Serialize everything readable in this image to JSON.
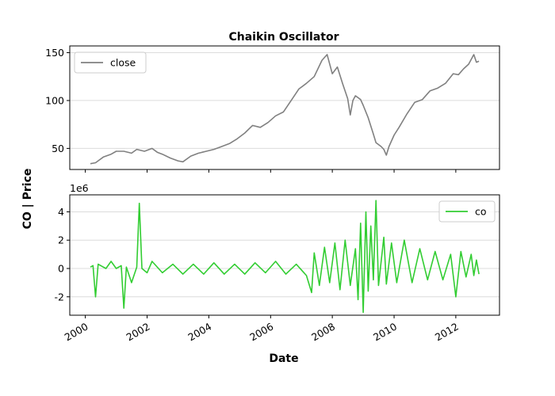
{
  "chart_data": [
    {
      "type": "line",
      "title": "Chaikin Oscillator",
      "legend": "top-left",
      "grid": "y",
      "ylim": [
        28,
        157
      ],
      "yticks": [
        50,
        100,
        150
      ],
      "series": [
        {
          "name": "close",
          "color": "#808080",
          "points": [
            [
              "2000-03-01",
              34
            ],
            [
              "2000-05-01",
              35
            ],
            [
              "2000-08-01",
              41
            ],
            [
              "2000-11-01",
              44
            ],
            [
              "2001-01-01",
              47
            ],
            [
              "2001-04-01",
              47
            ],
            [
              "2001-07-01",
              45
            ],
            [
              "2001-09-01",
              49
            ],
            [
              "2001-12-01",
              47
            ],
            [
              "2002-03-01",
              50
            ],
            [
              "2002-05-01",
              46
            ],
            [
              "2002-07-01",
              44
            ],
            [
              "2002-10-01",
              40
            ],
            [
              "2003-01-01",
              37
            ],
            [
              "2003-03-01",
              36
            ],
            [
              "2003-06-01",
              42
            ],
            [
              "2003-09-01",
              45
            ],
            [
              "2003-12-01",
              47
            ],
            [
              "2004-03-01",
              49
            ],
            [
              "2004-06-01",
              52
            ],
            [
              "2004-09-01",
              55
            ],
            [
              "2004-12-01",
              60
            ],
            [
              "2005-03-01",
              66
            ],
            [
              "2005-06-01",
              74
            ],
            [
              "2005-09-01",
              72
            ],
            [
              "2005-12-01",
              77
            ],
            [
              "2006-03-01",
              84
            ],
            [
              "2006-06-01",
              88
            ],
            [
              "2006-09-01",
              100
            ],
            [
              "2006-12-01",
              112
            ],
            [
              "2007-03-01",
              118
            ],
            [
              "2007-06-01",
              125
            ],
            [
              "2007-09-01",
              142
            ],
            [
              "2007-11-01",
              148
            ],
            [
              "2008-01-01",
              128
            ],
            [
              "2008-03-01",
              135
            ],
            [
              "2008-05-01",
              118
            ],
            [
              "2008-07-01",
              102
            ],
            [
              "2008-08-01",
              85
            ],
            [
              "2008-09-01",
              100
            ],
            [
              "2008-10-01",
              105
            ],
            [
              "2008-12-01",
              101
            ],
            [
              "2009-01-01",
              95
            ],
            [
              "2009-03-01",
              82
            ],
            [
              "2009-05-01",
              65
            ],
            [
              "2009-06-01",
              56
            ],
            [
              "2009-08-01",
              52
            ],
            [
              "2009-09-01",
              49
            ],
            [
              "2009-10-01",
              43
            ],
            [
              "2009-11-01",
              52
            ],
            [
              "2010-01-01",
              64
            ],
            [
              "2010-03-01",
              72
            ],
            [
              "2010-06-01",
              86
            ],
            [
              "2010-09-01",
              98
            ],
            [
              "2010-12-01",
              101
            ],
            [
              "2011-03-01",
              110
            ],
            [
              "2011-06-01",
              113
            ],
            [
              "2011-09-01",
              118
            ],
            [
              "2011-12-01",
              128
            ],
            [
              "2012-02-01",
              127
            ],
            [
              "2012-04-01",
              133
            ],
            [
              "2012-06-01",
              138
            ],
            [
              "2012-08-01",
              148
            ],
            [
              "2012-09-01",
              140
            ],
            [
              "2012-10-01",
              141
            ]
          ]
        }
      ]
    },
    {
      "type": "line",
      "y_scale_label": "1e6",
      "legend": "top-right",
      "grid": "y",
      "ylim": [
        -3.3,
        5.2
      ],
      "yticks": [
        -2,
        0,
        2,
        4
      ],
      "series": [
        {
          "name": "co",
          "color": "#32cd32",
          "points": [
            [
              "2000-03-01",
              0.1
            ],
            [
              "2000-04-01",
              0.2
            ],
            [
              "2000-05-01",
              -2.0
            ],
            [
              "2000-06-01",
              0.3
            ],
            [
              "2000-09-01",
              0.0
            ],
            [
              "2000-11-01",
              0.5
            ],
            [
              "2001-01-01",
              0.0
            ],
            [
              "2001-03-01",
              0.2
            ],
            [
              "2001-04-01",
              -2.8
            ],
            [
              "2001-05-01",
              0.1
            ],
            [
              "2001-07-01",
              -1.0
            ],
            [
              "2001-09-01",
              0.1
            ],
            [
              "2001-10-01",
              4.6
            ],
            [
              "2001-11-01",
              0.0
            ],
            [
              "2002-01-01",
              -0.3
            ],
            [
              "2002-03-01",
              0.5
            ],
            [
              "2002-07-01",
              -0.3
            ],
            [
              "2002-11-01",
              0.3
            ],
            [
              "2003-03-01",
              -0.4
            ],
            [
              "2003-07-01",
              0.3
            ],
            [
              "2003-11-01",
              -0.4
            ],
            [
              "2004-03-01",
              0.4
            ],
            [
              "2004-07-01",
              -0.4
            ],
            [
              "2004-11-01",
              0.3
            ],
            [
              "2005-03-01",
              -0.4
            ],
            [
              "2005-07-01",
              0.4
            ],
            [
              "2005-11-01",
              -0.3
            ],
            [
              "2006-03-01",
              0.5
            ],
            [
              "2006-07-01",
              -0.4
            ],
            [
              "2006-11-01",
              0.3
            ],
            [
              "2007-03-01",
              -0.5
            ],
            [
              "2007-05-01",
              -1.7
            ],
            [
              "2007-06-01",
              1.1
            ],
            [
              "2007-08-01",
              -1.2
            ],
            [
              "2007-10-01",
              1.5
            ],
            [
              "2007-12-01",
              -1.0
            ],
            [
              "2008-02-01",
              1.8
            ],
            [
              "2008-04-01",
              -1.5
            ],
            [
              "2008-06-01",
              2.0
            ],
            [
              "2008-08-01",
              -1.2
            ],
            [
              "2008-10-01",
              1.4
            ],
            [
              "2008-11-01",
              -2.2
            ],
            [
              "2008-12-01",
              3.2
            ],
            [
              "2009-01-01",
              -3.1
            ],
            [
              "2009-02-01",
              4.0
            ],
            [
              "2009-03-01",
              -1.6
            ],
            [
              "2009-04-01",
              3.0
            ],
            [
              "2009-05-01",
              -0.8
            ],
            [
              "2009-06-01",
              4.8
            ],
            [
              "2009-07-01",
              -1.2
            ],
            [
              "2009-09-01",
              2.2
            ],
            [
              "2009-10-01",
              -1.1
            ],
            [
              "2009-12-01",
              1.8
            ],
            [
              "2010-02-01",
              -1.0
            ],
            [
              "2010-05-01",
              2.0
            ],
            [
              "2010-08-01",
              -1.0
            ],
            [
              "2010-11-01",
              1.4
            ],
            [
              "2011-02-01",
              -0.8
            ],
            [
              "2011-05-01",
              1.2
            ],
            [
              "2011-08-01",
              -0.8
            ],
            [
              "2011-11-01",
              1.0
            ],
            [
              "2012-01-01",
              -2.0
            ],
            [
              "2012-03-01",
              1.2
            ],
            [
              "2012-05-01",
              -0.6
            ],
            [
              "2012-07-01",
              1.0
            ],
            [
              "2012-08-01",
              -0.5
            ],
            [
              "2012-09-01",
              0.6
            ],
            [
              "2012-10-01",
              -0.4
            ]
          ]
        }
      ]
    }
  ],
  "shared_x": {
    "xlabel": "Date",
    "range": [
      "1999-07-01",
      "2013-06-01"
    ],
    "ticks": [
      [
        "2000-01-01",
        "2000"
      ],
      [
        "2002-01-01",
        "2002"
      ],
      [
        "2004-01-01",
        "2004"
      ],
      [
        "2006-01-01",
        "2006"
      ],
      [
        "2008-01-01",
        "2008"
      ],
      [
        "2010-01-01",
        "2010"
      ],
      [
        "2012-01-01",
        "2012"
      ]
    ]
  },
  "ylabel": "CO | Price"
}
